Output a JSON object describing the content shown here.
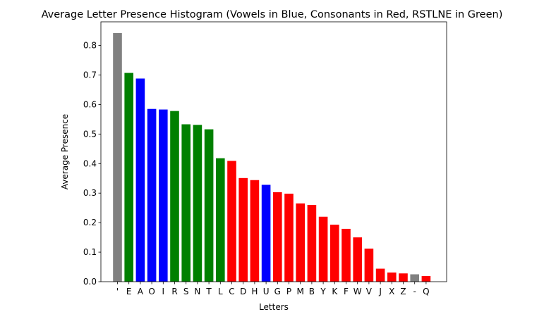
{
  "chart_data": {
    "type": "bar",
    "title": "Average Letter Presence Histogram (Vowels in Blue, Consonants in Red, RSTLNE in Green)",
    "xlabel": "Letters",
    "ylabel": "Average Presence",
    "ylim": [
      0,
      0.88
    ],
    "yticks": [
      "0.0",
      "0.1",
      "0.2",
      "0.3",
      "0.4",
      "0.5",
      "0.6",
      "0.7",
      "0.8"
    ],
    "grid": false,
    "legend": "none",
    "categories": [
      "'",
      "E",
      "A",
      "O",
      "I",
      "R",
      "S",
      "N",
      "T",
      "L",
      "C",
      "D",
      "H",
      "U",
      "G",
      "P",
      "M",
      "B",
      "Y",
      "K",
      "F",
      "W",
      "V",
      "J",
      "X",
      "Z",
      "-",
      "Q"
    ],
    "values": [
      0.842,
      0.707,
      0.688,
      0.585,
      0.583,
      0.578,
      0.533,
      0.531,
      0.516,
      0.418,
      0.409,
      0.351,
      0.344,
      0.328,
      0.303,
      0.298,
      0.265,
      0.26,
      0.22,
      0.193,
      0.179,
      0.15,
      0.112,
      0.044,
      0.031,
      0.028,
      0.025,
      0.019
    ],
    "bar_colors": [
      "#808080",
      "#008000",
      "#0000ff",
      "#0000ff",
      "#0000ff",
      "#008000",
      "#008000",
      "#008000",
      "#008000",
      "#008000",
      "#ff0000",
      "#ff0000",
      "#ff0000",
      "#0000ff",
      "#ff0000",
      "#ff0000",
      "#ff0000",
      "#ff0000",
      "#ff0000",
      "#ff0000",
      "#ff0000",
      "#ff0000",
      "#ff0000",
      "#ff0000",
      "#ff0000",
      "#ff0000",
      "#808080",
      "#ff0000"
    ]
  }
}
